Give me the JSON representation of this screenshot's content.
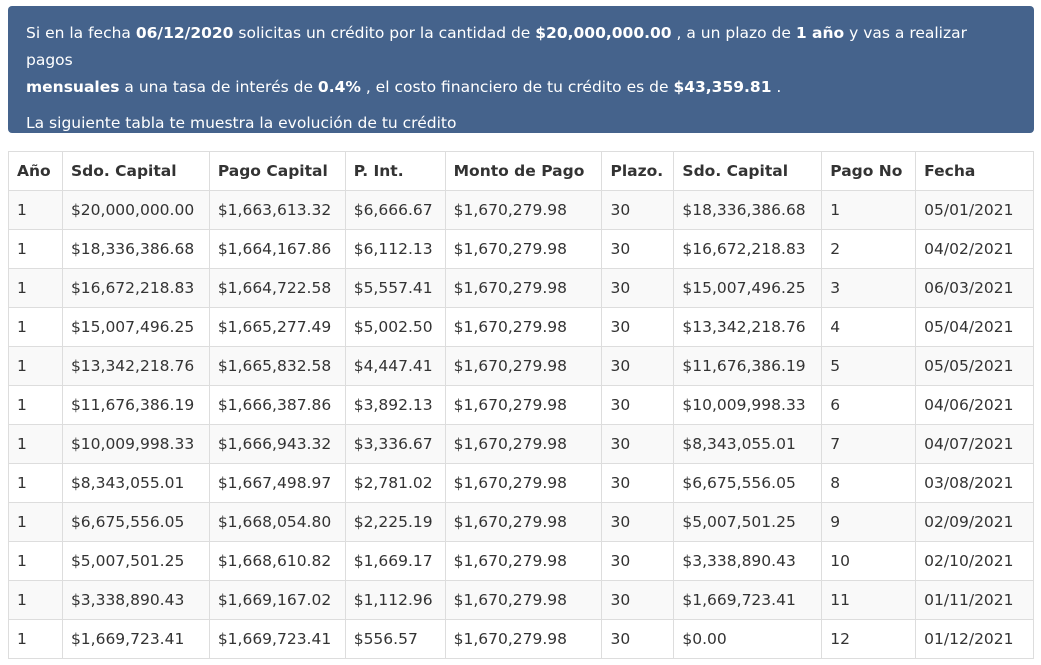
{
  "summary": {
    "t1": "Si en la fecha ",
    "date": "06/12/2020",
    "t2": " solicitas un crédito por la cantidad de ",
    "amount": "$20,000,000.00",
    "t3": " , a un plazo de ",
    "term": "1 año",
    "t4": " y vas a realizar pagos ",
    "frequency": "mensuales",
    "t5": " a una tasa de interés de ",
    "rate": "0.4%",
    "t6": " , el costo financiero de tu crédito es de ",
    "cost": "$43,359.81",
    "t7": " .",
    "subtitle": "La siguiente tabla te muestra la evolución de tu crédito"
  },
  "table": {
    "headers": [
      "Año",
      "Sdo. Capital",
      "Pago Capital",
      "P. Int.",
      "Monto de Pago",
      "Plazo.",
      "Sdo. Capital",
      "Pago No",
      "Fecha"
    ],
    "rows": [
      [
        "1",
        "$20,000,000.00",
        "$1,663,613.32",
        "$6,666.67",
        "$1,670,279.98",
        "30",
        "$18,336,386.68",
        "1",
        "05/01/2021"
      ],
      [
        "1",
        "$18,336,386.68",
        "$1,664,167.86",
        "$6,112.13",
        "$1,670,279.98",
        "30",
        "$16,672,218.83",
        "2",
        "04/02/2021"
      ],
      [
        "1",
        "$16,672,218.83",
        "$1,664,722.58",
        "$5,557.41",
        "$1,670,279.98",
        "30",
        "$15,007,496.25",
        "3",
        "06/03/2021"
      ],
      [
        "1",
        "$15,007,496.25",
        "$1,665,277.49",
        "$5,002.50",
        "$1,670,279.98",
        "30",
        "$13,342,218.76",
        "4",
        "05/04/2021"
      ],
      [
        "1",
        "$13,342,218.76",
        "$1,665,832.58",
        "$4,447.41",
        "$1,670,279.98",
        "30",
        "$11,676,386.19",
        "5",
        "05/05/2021"
      ],
      [
        "1",
        "$11,676,386.19",
        "$1,666,387.86",
        "$3,892.13",
        "$1,670,279.98",
        "30",
        "$10,009,998.33",
        "6",
        "04/06/2021"
      ],
      [
        "1",
        "$10,009,998.33",
        "$1,666,943.32",
        "$3,336.67",
        "$1,670,279.98",
        "30",
        "$8,343,055.01",
        "7",
        "04/07/2021"
      ],
      [
        "1",
        "$8,343,055.01",
        "$1,667,498.97",
        "$2,781.02",
        "$1,670,279.98",
        "30",
        "$6,675,556.05",
        "8",
        "03/08/2021"
      ],
      [
        "1",
        "$6,675,556.05",
        "$1,668,054.80",
        "$2,225.19",
        "$1,670,279.98",
        "30",
        "$5,007,501.25",
        "9",
        "02/09/2021"
      ],
      [
        "1",
        "$5,007,501.25",
        "$1,668,610.82",
        "$1,669.17",
        "$1,670,279.98",
        "30",
        "$3,338,890.43",
        "10",
        "02/10/2021"
      ],
      [
        "1",
        "$3,338,890.43",
        "$1,669,167.02",
        "$1,112.96",
        "$1,670,279.98",
        "30",
        "$1,669,723.41",
        "11",
        "01/11/2021"
      ],
      [
        "1",
        "$1,669,723.41",
        "$1,669,723.41",
        "$556.57",
        "$1,670,279.98",
        "30",
        "$0.00",
        "12",
        "01/12/2021"
      ]
    ]
  },
  "colors": {
    "banner_bg": "#45638c",
    "banner_text": "#ffffff",
    "table_border": "#dddddd",
    "row_stripe": "#f9f9f9",
    "text": "#333333"
  }
}
